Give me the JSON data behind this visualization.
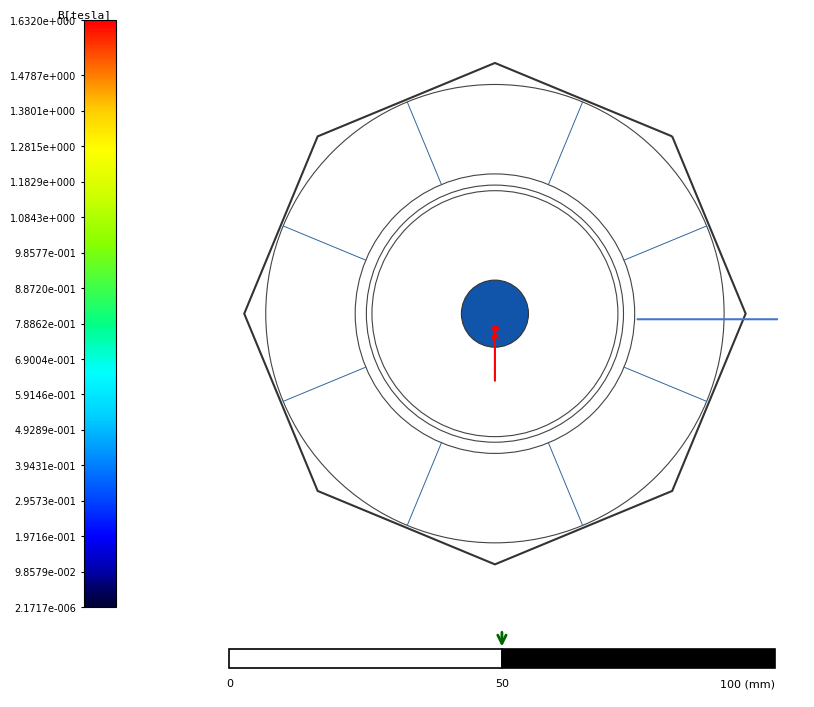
{
  "title": "",
  "colorbar_label": "B[tesla]",
  "colorbar_values": [
    "1.6320e+000",
    "1.4787e+000",
    "1.3801e+000",
    "1.2815e+000",
    "1.1829e+000",
    "1.0843e+000",
    "9.8577e-001",
    "8.8720e-001",
    "7.8862e-001",
    "6.9004e-001",
    "5.9146e-001",
    "4.9289e-001",
    "3.9431e-001",
    "2.9573e-001",
    "1.9716e-001",
    "9.8579e-002",
    "2.1717e-006"
  ],
  "colorbar_colors": [
    "#ff0000",
    "#ff4400",
    "#ff8800",
    "#ffcc00",
    "#ffff00",
    "#ccff00",
    "#88ff00",
    "#44ff44",
    "#00ff88",
    "#00ffcc",
    "#00ccff",
    "#0088ff",
    "#0044ff",
    "#0000ff",
    "#0000cc",
    "#000088",
    "#000044"
  ],
  "scale_bar_label": "100 (mm)",
  "scale_bar_mid": "50",
  "scale_bar_start": "0",
  "background_color": "#ffffff",
  "fig_width": 7.71,
  "fig_height": 7.05,
  "image_main_color": "#0044ff",
  "outer_shape_color": "#003399"
}
